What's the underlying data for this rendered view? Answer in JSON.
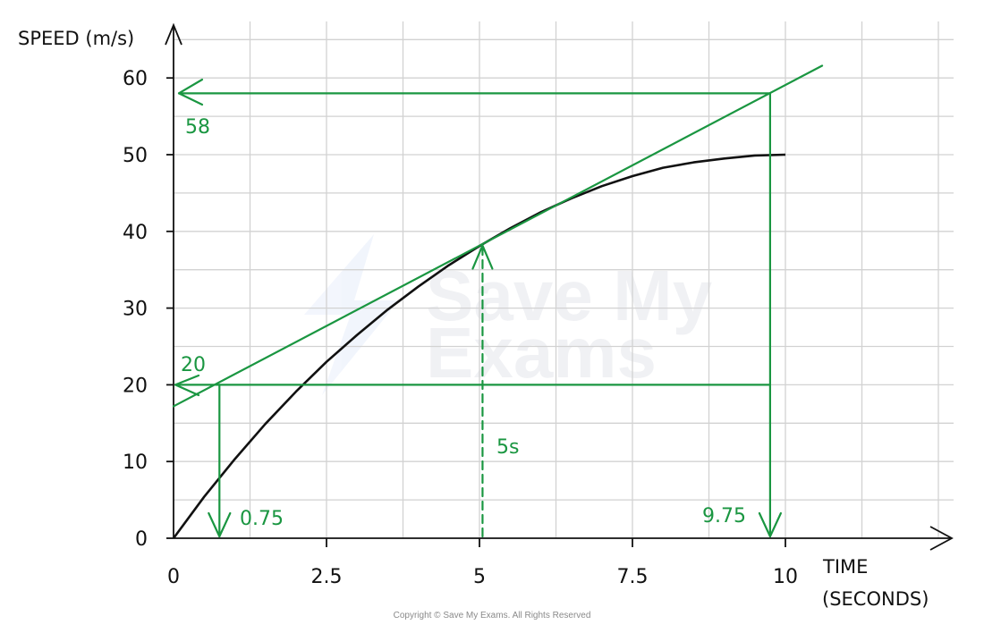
{
  "chart_data": {
    "type": "line",
    "ylabel": "SPEED (m/s)",
    "xlabel_line1": "TIME",
    "xlabel_line2": "(SECONDS)",
    "xlim": [
      0,
      12.5
    ],
    "ylim": [
      0,
      60
    ],
    "x_ticks": [
      {
        "value": 0,
        "label": "0"
      },
      {
        "value": 2.5,
        "label": "2.5"
      },
      {
        "value": 5,
        "label": "5"
      },
      {
        "value": 7.5,
        "label": "7.5"
      },
      {
        "value": 10,
        "label": "10"
      }
    ],
    "y_ticks": [
      {
        "value": 0,
        "label": "0"
      },
      {
        "value": 10,
        "label": "10"
      },
      {
        "value": 20,
        "label": "20"
      },
      {
        "value": 30,
        "label": "30"
      },
      {
        "value": 40,
        "label": "40"
      },
      {
        "value": 50,
        "label": "50"
      },
      {
        "value": 60,
        "label": "60"
      }
    ],
    "grid": true,
    "series": [
      {
        "color": "#111111",
        "x": [
          0,
          0.5,
          1,
          1.5,
          2,
          2.5,
          3,
          3.5,
          4,
          4.5,
          5,
          5.5,
          6,
          6.5,
          7,
          7.5,
          8,
          8.5,
          9,
          9.5,
          10
        ],
        "y": [
          0,
          5.4,
          10.3,
          14.9,
          19.1,
          23.0,
          26.5,
          29.8,
          32.8,
          35.6,
          38.1,
          40.4,
          42.5,
          44.3,
          45.9,
          47.2,
          48.3,
          49.0,
          49.5,
          49.9,
          50.0
        ]
      }
    ],
    "tangent": {
      "color": "#1a9641",
      "x": [
        0,
        10.6
      ],
      "y": [
        17.2,
        61.6
      ]
    },
    "annotations": [
      {
        "label": "58",
        "value": 58
      },
      {
        "label": "20",
        "value": 20
      },
      {
        "label": "0.75",
        "value": 0.75
      },
      {
        "label": "9.75",
        "value": 9.75
      },
      {
        "label": "5s",
        "value": 5
      }
    ],
    "accent_color": "#1a9641"
  },
  "copyright": "Copyright © Save My Exams. All Rights Reserved",
  "watermark": {
    "line1": "Save My",
    "line2": "Exams"
  }
}
